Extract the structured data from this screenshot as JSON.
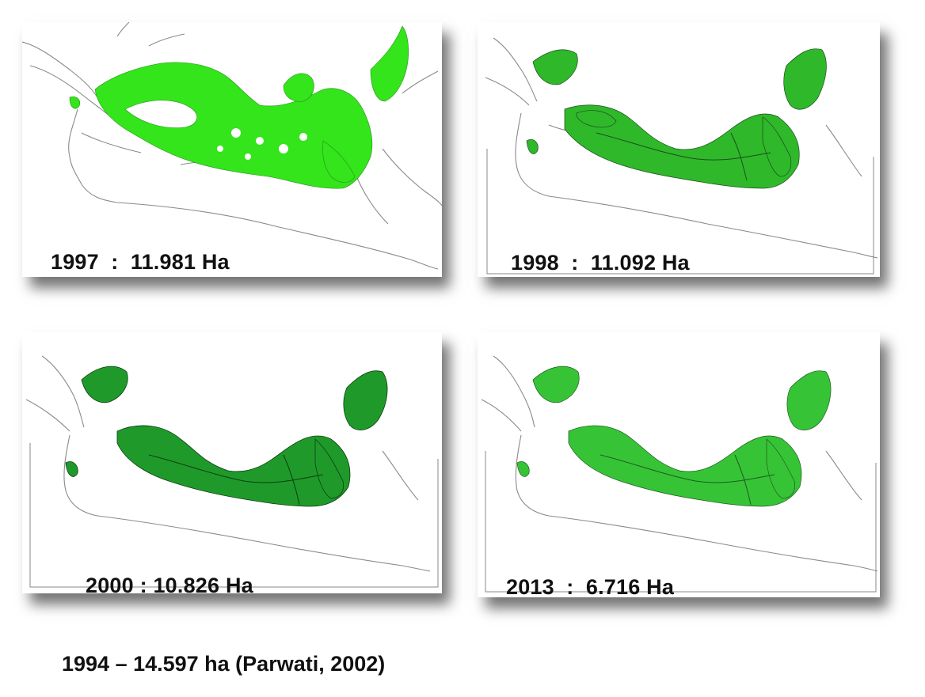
{
  "panels": [
    {
      "id": "map-1997",
      "year": "1997",
      "caption": "1997  :  11.981 Ha",
      "fill_color": "#33e51a",
      "edge_color": "#2a8f1e",
      "framed": false
    },
    {
      "id": "map-1998",
      "year": "1998",
      "caption": "1998  :  11.092 Ha",
      "fill_color": "#2fb82a",
      "edge_color": "#1d4d1d",
      "framed": true
    },
    {
      "id": "map-2000",
      "year": "2000",
      "caption": "2000 : 10.826 Ha",
      "fill_color": "#1f9a2a",
      "edge_color": "#0f3d12",
      "framed": true
    },
    {
      "id": "map-2013",
      "year": "2013",
      "caption": "2013  :  6.716 Ha",
      "fill_color": "#36c436",
      "edge_color": "#1f5a1f",
      "framed": true
    }
  ],
  "footnote": "1994 – 14.597 ha (Parwati, 2002)",
  "colors": {
    "background": "#ffffff",
    "coastline": "#8a8a8a",
    "caption_text": "#111111"
  }
}
